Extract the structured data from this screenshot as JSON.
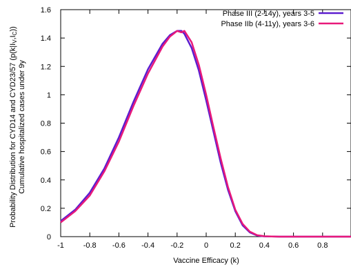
{
  "chart_data": {
    "type": "line",
    "title": "",
    "xlabel": "Vaccine Efficacy (k)",
    "ylabel_lines": [
      "Probability Distribution for CYD14 and CYD23/57 (p(k|I",
      "V",
      ",I",
      "C",
      "))",
      "Cumulative hospitalized cases under 9y"
    ],
    "xlim": [
      -1,
      1
    ],
    "ylim": [
      0,
      1.6
    ],
    "xticks": [
      "-1",
      "-0.8",
      "-0.6",
      "-0.4",
      "-0.2",
      "0",
      "0.2",
      "0.4",
      "0.6",
      "0.8"
    ],
    "xtick_values": [
      -1,
      -0.8,
      -0.6,
      -0.4,
      -0.2,
      0,
      0.2,
      0.4,
      0.6,
      0.8
    ],
    "yticks": [
      "0",
      "0.2",
      "0.4",
      "0.6",
      "0.8",
      "1",
      "1.2",
      "1.4",
      "1.6"
    ],
    "ytick_values": [
      0,
      0.2,
      0.4,
      0.6,
      0.8,
      1,
      1.2,
      1.4,
      1.6
    ],
    "grid": false,
    "legend_position": "top-right",
    "series": [
      {
        "name": "Phase III (2-14y), years 3-5",
        "color": "#5b1ccf",
        "x": [
          -1,
          -0.9,
          -0.8,
          -0.7,
          -0.6,
          -0.5,
          -0.4,
          -0.3,
          -0.25,
          -0.2,
          -0.17,
          -0.15,
          -0.1,
          -0.05,
          0,
          0.05,
          0.1,
          0.15,
          0.2,
          0.25,
          0.3,
          0.35,
          0.4,
          0.45,
          0.5,
          0.6,
          0.7,
          0.8,
          0.9,
          1
        ],
        "y": [
          0.11,
          0.19,
          0.31,
          0.48,
          0.7,
          0.95,
          1.18,
          1.36,
          1.42,
          1.45,
          1.45,
          1.43,
          1.33,
          1.17,
          0.96,
          0.74,
          0.52,
          0.33,
          0.18,
          0.08,
          0.03,
          0.008,
          0.002,
          0.001,
          0,
          0,
          0,
          0,
          0,
          0
        ]
      },
      {
        "name": "Phase IIb (4-11y), years 3-6",
        "color": "#e8197a",
        "x": [
          -1,
          -0.9,
          -0.8,
          -0.7,
          -0.6,
          -0.5,
          -0.4,
          -0.3,
          -0.25,
          -0.2,
          -0.17,
          -0.15,
          -0.1,
          -0.05,
          0,
          0.05,
          0.1,
          0.15,
          0.2,
          0.25,
          0.3,
          0.35,
          0.4,
          0.45,
          0.5,
          0.6,
          0.7,
          0.8,
          0.9,
          1
        ],
        "y": [
          0.1,
          0.18,
          0.29,
          0.46,
          0.67,
          0.92,
          1.15,
          1.34,
          1.41,
          1.45,
          1.44,
          1.45,
          1.37,
          1.21,
          1.0,
          0.77,
          0.55,
          0.35,
          0.19,
          0.09,
          0.035,
          0.01,
          0.003,
          0.001,
          0,
          0,
          0,
          0,
          0,
          0
        ]
      }
    ]
  }
}
